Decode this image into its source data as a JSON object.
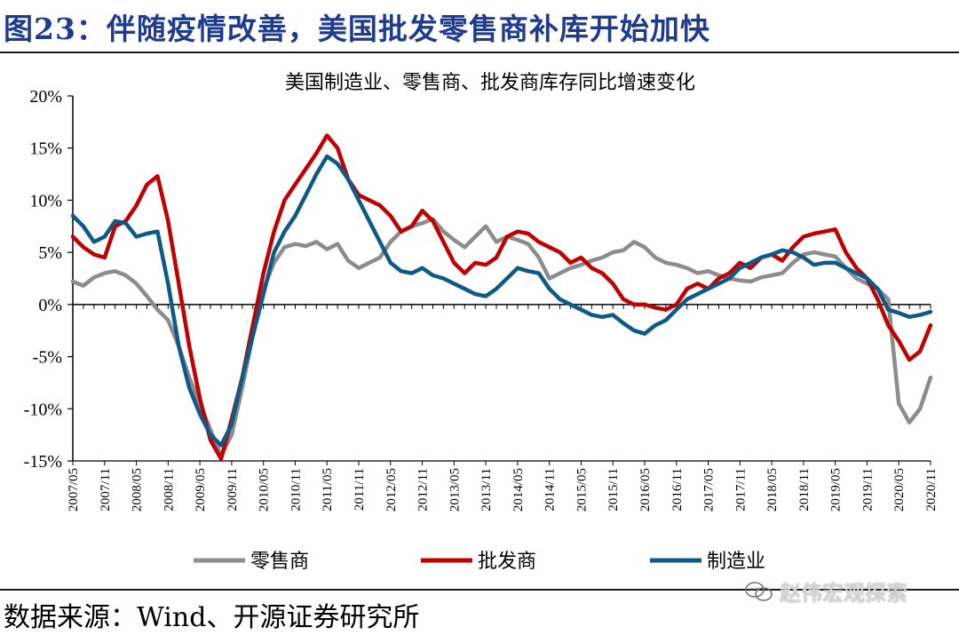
{
  "figure_title": "图23：伴随疫情改善，美国批发零售商补库开始加快",
  "source_text": "数据来源：Wind、开源证券研究所",
  "watermark_text": "赵伟宏观探索",
  "chart_data": {
    "type": "line",
    "title": "美国制造业、零售商、批发商库存同比增速变化",
    "xlabel": "",
    "ylabel": "",
    "ylim": [
      -15,
      20
    ],
    "yticks": [
      20,
      15,
      10,
      5,
      0,
      -5,
      -10,
      -15
    ],
    "ytick_labels": [
      "20%",
      "15%",
      "10%",
      "5%",
      "0%",
      "-5%",
      "-10%",
      "-15%"
    ],
    "x_start": "2007/05",
    "x_end": "2020/11",
    "xtick_labels": [
      "2007/05",
      "2007/11",
      "2008/05",
      "2008/11",
      "2009/05",
      "2009/11",
      "2010/05",
      "2010/11",
      "2011/05",
      "2011/11",
      "2012/05",
      "2012/11",
      "2013/05",
      "2013/11",
      "2014/05",
      "2014/11",
      "2015/05",
      "2015/11",
      "2016/05",
      "2016/11",
      "2017/05",
      "2017/11",
      "2018/05",
      "2018/11",
      "2019/05",
      "2019/11",
      "2020/05",
      "2020/11"
    ],
    "legend_position": "bottom",
    "series": [
      {
        "name": "零售商",
        "color": "#8c8c8c",
        "points": [
          [
            "2007/05",
            2.2
          ],
          [
            "2007/07",
            1.8
          ],
          [
            "2007/09",
            2.6
          ],
          [
            "2007/11",
            3.0
          ],
          [
            "2008/01",
            3.2
          ],
          [
            "2008/03",
            2.8
          ],
          [
            "2008/05",
            2.0
          ],
          [
            "2008/07",
            0.8
          ],
          [
            "2008/09",
            -0.5
          ],
          [
            "2008/11",
            -1.5
          ],
          [
            "2009/01",
            -4.0
          ],
          [
            "2009/03",
            -7.0
          ],
          [
            "2009/05",
            -9.5
          ],
          [
            "2009/07",
            -12.0
          ],
          [
            "2009/09",
            -14.5
          ],
          [
            "2009/11",
            -12.5
          ],
          [
            "2010/01",
            -8.0
          ],
          [
            "2010/03",
            -3.0
          ],
          [
            "2010/05",
            1.5
          ],
          [
            "2010/07",
            4.0
          ],
          [
            "2010/09",
            5.5
          ],
          [
            "2010/11",
            5.8
          ],
          [
            "2011/01",
            5.6
          ],
          [
            "2011/03",
            6.0
          ],
          [
            "2011/05",
            5.3
          ],
          [
            "2011/07",
            5.8
          ],
          [
            "2011/09",
            4.2
          ],
          [
            "2011/11",
            3.5
          ],
          [
            "2012/01",
            4.0
          ],
          [
            "2012/03",
            4.5
          ],
          [
            "2012/05",
            6.0
          ],
          [
            "2012/07",
            7.0
          ],
          [
            "2012/09",
            7.5
          ],
          [
            "2012/11",
            7.8
          ],
          [
            "2013/01",
            8.2
          ],
          [
            "2013/03",
            7.0
          ],
          [
            "2013/05",
            6.2
          ],
          [
            "2013/07",
            5.5
          ],
          [
            "2013/09",
            6.5
          ],
          [
            "2013/11",
            7.5
          ],
          [
            "2014/01",
            6.0
          ],
          [
            "2014/03",
            6.5
          ],
          [
            "2014/05",
            6.2
          ],
          [
            "2014/07",
            5.8
          ],
          [
            "2014/09",
            4.5
          ],
          [
            "2014/11",
            2.5
          ],
          [
            "2015/01",
            3.0
          ],
          [
            "2015/03",
            3.5
          ],
          [
            "2015/05",
            3.8
          ],
          [
            "2015/07",
            4.2
          ],
          [
            "2015/09",
            4.5
          ],
          [
            "2015/11",
            5.0
          ],
          [
            "2016/01",
            5.2
          ],
          [
            "2016/03",
            6.0
          ],
          [
            "2016/05",
            5.5
          ],
          [
            "2016/07",
            4.5
          ],
          [
            "2016/09",
            4.0
          ],
          [
            "2016/11",
            3.8
          ],
          [
            "2017/01",
            3.5
          ],
          [
            "2017/03",
            3.0
          ],
          [
            "2017/05",
            3.2
          ],
          [
            "2017/07",
            2.8
          ],
          [
            "2017/09",
            2.5
          ],
          [
            "2017/11",
            2.3
          ],
          [
            "2018/01",
            2.2
          ],
          [
            "2018/03",
            2.6
          ],
          [
            "2018/05",
            2.8
          ],
          [
            "2018/07",
            3.0
          ],
          [
            "2018/09",
            4.0
          ],
          [
            "2018/11",
            4.8
          ],
          [
            "2019/01",
            5.0
          ],
          [
            "2019/03",
            4.8
          ],
          [
            "2019/05",
            4.6
          ],
          [
            "2019/07",
            3.5
          ],
          [
            "2019/09",
            2.5
          ],
          [
            "2019/11",
            2.0
          ],
          [
            "2020/01",
            1.5
          ],
          [
            "2020/03",
            0.5
          ],
          [
            "2020/05",
            -9.5
          ],
          [
            "2020/07",
            -11.3
          ],
          [
            "2020/09",
            -10.0
          ],
          [
            "2020/11",
            -7.0
          ]
        ]
      },
      {
        "name": "批发商",
        "color": "#c00000",
        "points": [
          [
            "2007/05",
            6.5
          ],
          [
            "2007/07",
            5.5
          ],
          [
            "2007/09",
            4.8
          ],
          [
            "2007/11",
            4.5
          ],
          [
            "2008/01",
            7.5
          ],
          [
            "2008/03",
            8.0
          ],
          [
            "2008/05",
            9.5
          ],
          [
            "2008/07",
            11.5
          ],
          [
            "2008/09",
            12.3
          ],
          [
            "2008/11",
            8.0
          ],
          [
            "2009/01",
            2.0
          ],
          [
            "2009/03",
            -4.0
          ],
          [
            "2009/05",
            -9.0
          ],
          [
            "2009/07",
            -13.0
          ],
          [
            "2009/09",
            -14.8
          ],
          [
            "2009/11",
            -11.0
          ],
          [
            "2010/01",
            -7.0
          ],
          [
            "2010/03",
            -2.0
          ],
          [
            "2010/05",
            3.0
          ],
          [
            "2010/07",
            7.0
          ],
          [
            "2010/09",
            10.0
          ],
          [
            "2010/11",
            11.5
          ],
          [
            "2011/01",
            13.0
          ],
          [
            "2011/03",
            14.5
          ],
          [
            "2011/05",
            16.2
          ],
          [
            "2011/07",
            15.0
          ],
          [
            "2011/09",
            12.0
          ],
          [
            "2011/11",
            10.5
          ],
          [
            "2012/01",
            10.0
          ],
          [
            "2012/03",
            9.5
          ],
          [
            "2012/05",
            8.5
          ],
          [
            "2012/07",
            7.0
          ],
          [
            "2012/09",
            7.5
          ],
          [
            "2012/11",
            9.0
          ],
          [
            "2013/01",
            8.0
          ],
          [
            "2013/03",
            6.0
          ],
          [
            "2013/05",
            4.0
          ],
          [
            "2013/07",
            3.0
          ],
          [
            "2013/09",
            4.0
          ],
          [
            "2013/11",
            3.8
          ],
          [
            "2014/01",
            4.5
          ],
          [
            "2014/03",
            6.5
          ],
          [
            "2014/05",
            7.0
          ],
          [
            "2014/07",
            6.8
          ],
          [
            "2014/09",
            6.0
          ],
          [
            "2014/11",
            5.5
          ],
          [
            "2015/01",
            5.0
          ],
          [
            "2015/03",
            4.0
          ],
          [
            "2015/05",
            4.5
          ],
          [
            "2015/07",
            3.5
          ],
          [
            "2015/09",
            3.0
          ],
          [
            "2015/11",
            2.0
          ],
          [
            "2016/01",
            0.5
          ],
          [
            "2016/03",
            0.0
          ],
          [
            "2016/05",
            0.0
          ],
          [
            "2016/07",
            -0.3
          ],
          [
            "2016/09",
            -0.5
          ],
          [
            "2016/11",
            0.0
          ],
          [
            "2017/01",
            1.5
          ],
          [
            "2017/03",
            2.0
          ],
          [
            "2017/05",
            1.5
          ],
          [
            "2017/07",
            2.5
          ],
          [
            "2017/09",
            3.0
          ],
          [
            "2017/11",
            4.0
          ],
          [
            "2018/01",
            3.5
          ],
          [
            "2018/03",
            4.5
          ],
          [
            "2018/05",
            4.8
          ],
          [
            "2018/07",
            4.2
          ],
          [
            "2018/09",
            5.5
          ],
          [
            "2018/11",
            6.5
          ],
          [
            "2019/01",
            6.8
          ],
          [
            "2019/03",
            7.0
          ],
          [
            "2019/05",
            7.2
          ],
          [
            "2019/07",
            5.0
          ],
          [
            "2019/09",
            3.5
          ],
          [
            "2019/11",
            2.5
          ],
          [
            "2020/01",
            0.5
          ],
          [
            "2020/03",
            -2.0
          ],
          [
            "2020/05",
            -3.5
          ],
          [
            "2020/07",
            -5.3
          ],
          [
            "2020/09",
            -4.5
          ],
          [
            "2020/11",
            -2.0
          ]
        ]
      },
      {
        "name": "制造业",
        "color": "#0e5a86",
        "points": [
          [
            "2007/05",
            8.5
          ],
          [
            "2007/07",
            7.5
          ],
          [
            "2007/09",
            6.0
          ],
          [
            "2007/11",
            6.5
          ],
          [
            "2008/01",
            8.0
          ],
          [
            "2008/03",
            7.8
          ],
          [
            "2008/05",
            6.5
          ],
          [
            "2008/07",
            6.8
          ],
          [
            "2008/09",
            7.0
          ],
          [
            "2008/11",
            2.0
          ],
          [
            "2009/01",
            -4.0
          ],
          [
            "2009/03",
            -8.0
          ],
          [
            "2009/05",
            -10.5
          ],
          [
            "2009/07",
            -12.5
          ],
          [
            "2009/09",
            -13.5
          ],
          [
            "2009/11",
            -11.5
          ],
          [
            "2010/01",
            -7.0
          ],
          [
            "2010/03",
            -3.0
          ],
          [
            "2010/05",
            1.0
          ],
          [
            "2010/07",
            5.0
          ],
          [
            "2010/09",
            7.0
          ],
          [
            "2010/11",
            8.5
          ],
          [
            "2011/01",
            10.5
          ],
          [
            "2011/03",
            12.5
          ],
          [
            "2011/05",
            14.2
          ],
          [
            "2011/07",
            13.5
          ],
          [
            "2011/09",
            12.0
          ],
          [
            "2011/11",
            10.0
          ],
          [
            "2012/01",
            8.0
          ],
          [
            "2012/03",
            6.0
          ],
          [
            "2012/05",
            4.0
          ],
          [
            "2012/07",
            3.2
          ],
          [
            "2012/09",
            3.0
          ],
          [
            "2012/11",
            3.5
          ],
          [
            "2013/01",
            2.8
          ],
          [
            "2013/03",
            2.5
          ],
          [
            "2013/05",
            2.0
          ],
          [
            "2013/07",
            1.5
          ],
          [
            "2013/09",
            1.0
          ],
          [
            "2013/11",
            0.8
          ],
          [
            "2014/01",
            1.5
          ],
          [
            "2014/03",
            2.5
          ],
          [
            "2014/05",
            3.5
          ],
          [
            "2014/07",
            3.2
          ],
          [
            "2014/09",
            3.0
          ],
          [
            "2014/11",
            1.5
          ],
          [
            "2015/01",
            0.5
          ],
          [
            "2015/03",
            0.0
          ],
          [
            "2015/05",
            -0.5
          ],
          [
            "2015/07",
            -1.0
          ],
          [
            "2015/09",
            -1.2
          ],
          [
            "2015/11",
            -1.0
          ],
          [
            "2016/01",
            -1.8
          ],
          [
            "2016/03",
            -2.5
          ],
          [
            "2016/05",
            -2.8
          ],
          [
            "2016/07",
            -2.0
          ],
          [
            "2016/09",
            -1.5
          ],
          [
            "2016/11",
            -0.5
          ],
          [
            "2017/01",
            0.5
          ],
          [
            "2017/03",
            1.0
          ],
          [
            "2017/05",
            1.5
          ],
          [
            "2017/07",
            2.0
          ],
          [
            "2017/09",
            2.5
          ],
          [
            "2017/11",
            3.5
          ],
          [
            "2018/01",
            4.0
          ],
          [
            "2018/03",
            4.5
          ],
          [
            "2018/05",
            4.8
          ],
          [
            "2018/07",
            5.2
          ],
          [
            "2018/09",
            5.0
          ],
          [
            "2018/11",
            4.5
          ],
          [
            "2019/01",
            3.8
          ],
          [
            "2019/03",
            4.0
          ],
          [
            "2019/05",
            4.0
          ],
          [
            "2019/07",
            3.5
          ],
          [
            "2019/09",
            3.0
          ],
          [
            "2019/11",
            2.5
          ],
          [
            "2020/01",
            1.5
          ],
          [
            "2020/03",
            -0.5
          ],
          [
            "2020/05",
            -0.8
          ],
          [
            "2020/07",
            -1.2
          ],
          [
            "2020/09",
            -1.0
          ],
          [
            "2020/11",
            -0.7
          ]
        ]
      }
    ]
  }
}
